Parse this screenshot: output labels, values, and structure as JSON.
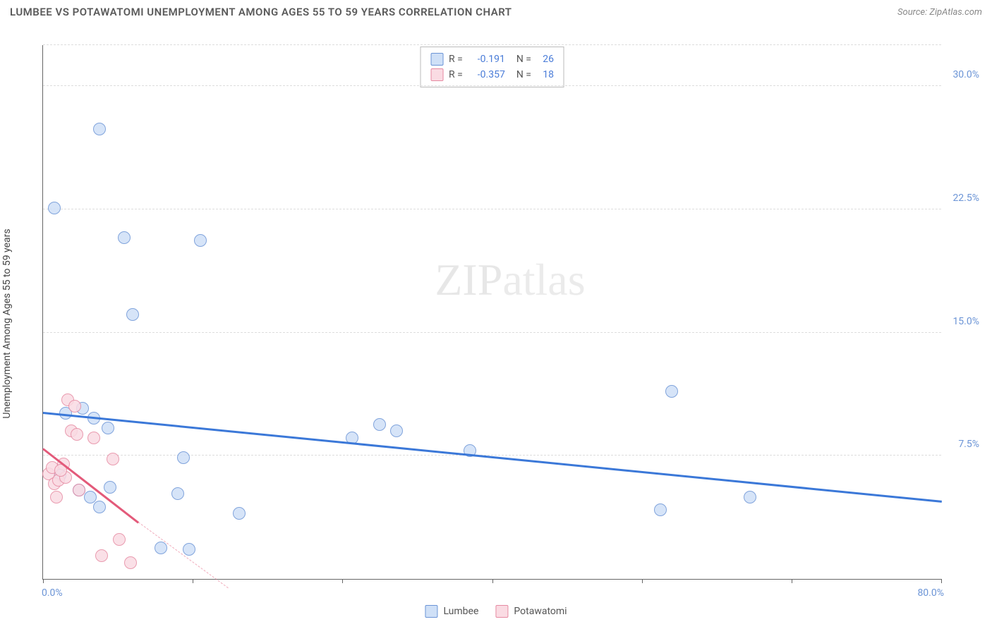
{
  "title": "LUMBEE VS POTAWATOMI UNEMPLOYMENT AMONG AGES 55 TO 59 YEARS CORRELATION CHART",
  "source": "Source: ZipAtlas.com",
  "ylabel": "Unemployment Among Ages 55 to 59 years",
  "watermark": {
    "bold": "ZIP",
    "rest": "atlas"
  },
  "chart": {
    "type": "scatter",
    "xlim": [
      0,
      80
    ],
    "ylim": [
      0,
      32.5
    ],
    "x_ticks": [
      0,
      13.33,
      26.66,
      40,
      53.33,
      66.66,
      80
    ],
    "y_gridlines": [
      7.5,
      15.0,
      22.5,
      30.0
    ],
    "y_tick_labels": [
      "7.5%",
      "15.0%",
      "22.5%",
      "30.0%"
    ],
    "x_min_label": "0.0%",
    "x_max_label": "80.0%",
    "background_color": "#ffffff",
    "grid_color": "#dddddd",
    "axis_color": "#666666",
    "series": [
      {
        "name": "Lumbee",
        "marker_fill": "#cfe0f7",
        "marker_stroke": "#6b94d6",
        "marker_radius": 9,
        "trend_color": "#3b78d8",
        "trend_width": 3,
        "trend_start": [
          0,
          10.2
        ],
        "trend_end": [
          80,
          4.8
        ],
        "stats": {
          "R": "-0.191",
          "N": "26"
        },
        "points": [
          [
            1.0,
            22.6
          ],
          [
            5.0,
            27.4
          ],
          [
            3.5,
            10.4
          ],
          [
            4.5,
            9.8
          ],
          [
            5.8,
            9.2
          ],
          [
            7.2,
            20.8
          ],
          [
            8.0,
            16.1
          ],
          [
            1.5,
            6.3
          ],
          [
            4.2,
            5.0
          ],
          [
            6.0,
            5.6
          ],
          [
            2.0,
            10.1
          ],
          [
            10.5,
            1.9
          ],
          [
            12.0,
            5.2
          ],
          [
            12.5,
            7.4
          ],
          [
            13.0,
            1.8
          ],
          [
            14.0,
            20.6
          ],
          [
            17.5,
            4.0
          ],
          [
            27.5,
            8.6
          ],
          [
            30.0,
            9.4
          ],
          [
            31.5,
            9.0
          ],
          [
            38.0,
            7.8
          ],
          [
            56.0,
            11.4
          ],
          [
            55.0,
            4.2
          ],
          [
            63.0,
            5.0
          ],
          [
            5.0,
            4.4
          ],
          [
            3.2,
            5.4
          ]
        ]
      },
      {
        "name": "Potawatomi",
        "marker_fill": "#fadbe3",
        "marker_stroke": "#e68aa2",
        "marker_radius": 9,
        "trend_color": "#e35a7a",
        "trend_width": 3,
        "trend_start": [
          0,
          8.0
        ],
        "trend_end": [
          8.5,
          3.5
        ],
        "trend_dash_start": [
          8.5,
          3.5
        ],
        "trend_dash_end": [
          16.5,
          -0.5
        ],
        "stats": {
          "R": "-0.357",
          "N": "18"
        },
        "points": [
          [
            0.5,
            6.4
          ],
          [
            0.8,
            6.8
          ],
          [
            1.0,
            5.8
          ],
          [
            1.4,
            6.0
          ],
          [
            1.8,
            7.0
          ],
          [
            2.0,
            6.2
          ],
          [
            2.2,
            10.9
          ],
          [
            2.5,
            9.0
          ],
          [
            2.8,
            10.5
          ],
          [
            3.0,
            8.8
          ],
          [
            3.2,
            5.4
          ],
          [
            4.5,
            8.6
          ],
          [
            5.2,
            1.4
          ],
          [
            6.2,
            7.3
          ],
          [
            6.8,
            2.4
          ],
          [
            7.8,
            1.0
          ],
          [
            1.2,
            5.0
          ],
          [
            1.6,
            6.6
          ]
        ]
      }
    ]
  },
  "legend": [
    {
      "label": "Lumbee",
      "fill": "#cfe0f7",
      "stroke": "#6b94d6"
    },
    {
      "label": "Potawatomi",
      "fill": "#fadbe3",
      "stroke": "#e68aa2"
    }
  ]
}
